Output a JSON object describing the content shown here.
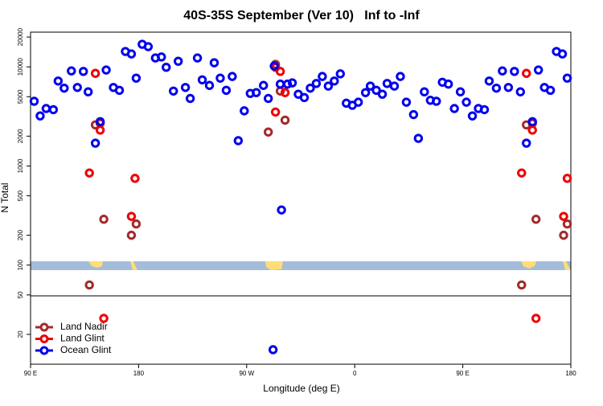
{
  "chart_data": {
    "type": "scatter",
    "title": "40S-35S September (Ver 10)   Inf to -Inf",
    "x_label": "Longitude (deg E)",
    "y_label": "N Total",
    "xlim": [
      90,
      540
    ],
    "xticks": [
      {
        "value": 90,
        "label": "90 E"
      },
      {
        "value": 180,
        "label": "180"
      },
      {
        "value": 270,
        "label": "90 W"
      },
      {
        "value": 360,
        "label": "0"
      },
      {
        "value": 450,
        "label": "90 E"
      },
      {
        "value": 540,
        "label": "180"
      }
    ],
    "ylim": [
      10,
      22400
    ],
    "y_scale": "log",
    "yticks": [
      20,
      50,
      100,
      200,
      500,
      1000,
      2000,
      5000,
      10000,
      20000
    ],
    "legend": "bottom-left",
    "series": [
      {
        "name": "Land Nadir",
        "color": "#a52a2a",
        "x": [
          139,
          144,
          148,
          151,
          174,
          178,
          288,
          294,
          298,
          302,
          499,
          503,
          508,
          511,
          534,
          537
        ],
        "values": [
          63,
          2600,
          2700,
          290,
          200,
          260,
          2200,
          10600,
          5700,
          2900,
          63,
          2600,
          2700,
          290,
          200,
          260
        ]
      },
      {
        "name": "Land Glint",
        "color": "#ee0000",
        "x": [
          139,
          144,
          148,
          151,
          174,
          177,
          294,
          294,
          298,
          302,
          499,
          503,
          508,
          511,
          534,
          537
        ],
        "values": [
          850,
          8600,
          2300,
          29,
          310,
          750,
          3500,
          9900,
          9000,
          5500,
          850,
          8600,
          2300,
          29,
          310,
          750
        ]
      },
      {
        "name": "Ocean Glint",
        "color": "#0000ee",
        "x": [
          93,
          98,
          103,
          109,
          113,
          118,
          124,
          129,
          134,
          138,
          144,
          148,
          153,
          159,
          164,
          169,
          174,
          178,
          183,
          188,
          194,
          199,
          203,
          209,
          213,
          219,
          223,
          229,
          233,
          239,
          243,
          248,
          253,
          258,
          263,
          268,
          273,
          278,
          284,
          288,
          293,
          298,
          304,
          308,
          313,
          318,
          323,
          328,
          333,
          338,
          343,
          348,
          353,
          358,
          363,
          369,
          373,
          378,
          383,
          387,
          393,
          398,
          403,
          409,
          413,
          418,
          423,
          428,
          433,
          438,
          443,
          448,
          453,
          458,
          463,
          468,
          472,
          478,
          483,
          488,
          493,
          498,
          503,
          508,
          513,
          518,
          523,
          528,
          533,
          537,
          299,
          292
        ],
        "values": [
          4500,
          3200,
          3800,
          3700,
          7200,
          6100,
          9100,
          6200,
          9000,
          5600,
          1700,
          2800,
          9300,
          6200,
          5800,
          14300,
          13500,
          7700,
          16900,
          16000,
          12300,
          12600,
          9900,
          5700,
          11400,
          6200,
          4800,
          12300,
          7400,
          6500,
          11000,
          7700,
          5800,
          8000,
          1800,
          3600,
          5400,
          5500,
          6500,
          4800,
          10200,
          6700,
          6700,
          6900,
          5300,
          4900,
          6100,
          6800,
          8000,
          6400,
          7200,
          8500,
          4300,
          4100,
          4400,
          5500,
          6400,
          5800,
          5300,
          6800,
          6400,
          8000,
          4400,
          3300,
          1900,
          5600,
          4600,
          4500,
          7000,
          6700,
          3800,
          5600,
          4400,
          3200,
          3800,
          3700,
          7200,
          6100,
          9100,
          6200,
          9000,
          5600,
          1700,
          2800,
          9300,
          6200,
          5800,
          14300,
          13500,
          7700,
          360,
          14
        ]
      }
    ]
  }
}
